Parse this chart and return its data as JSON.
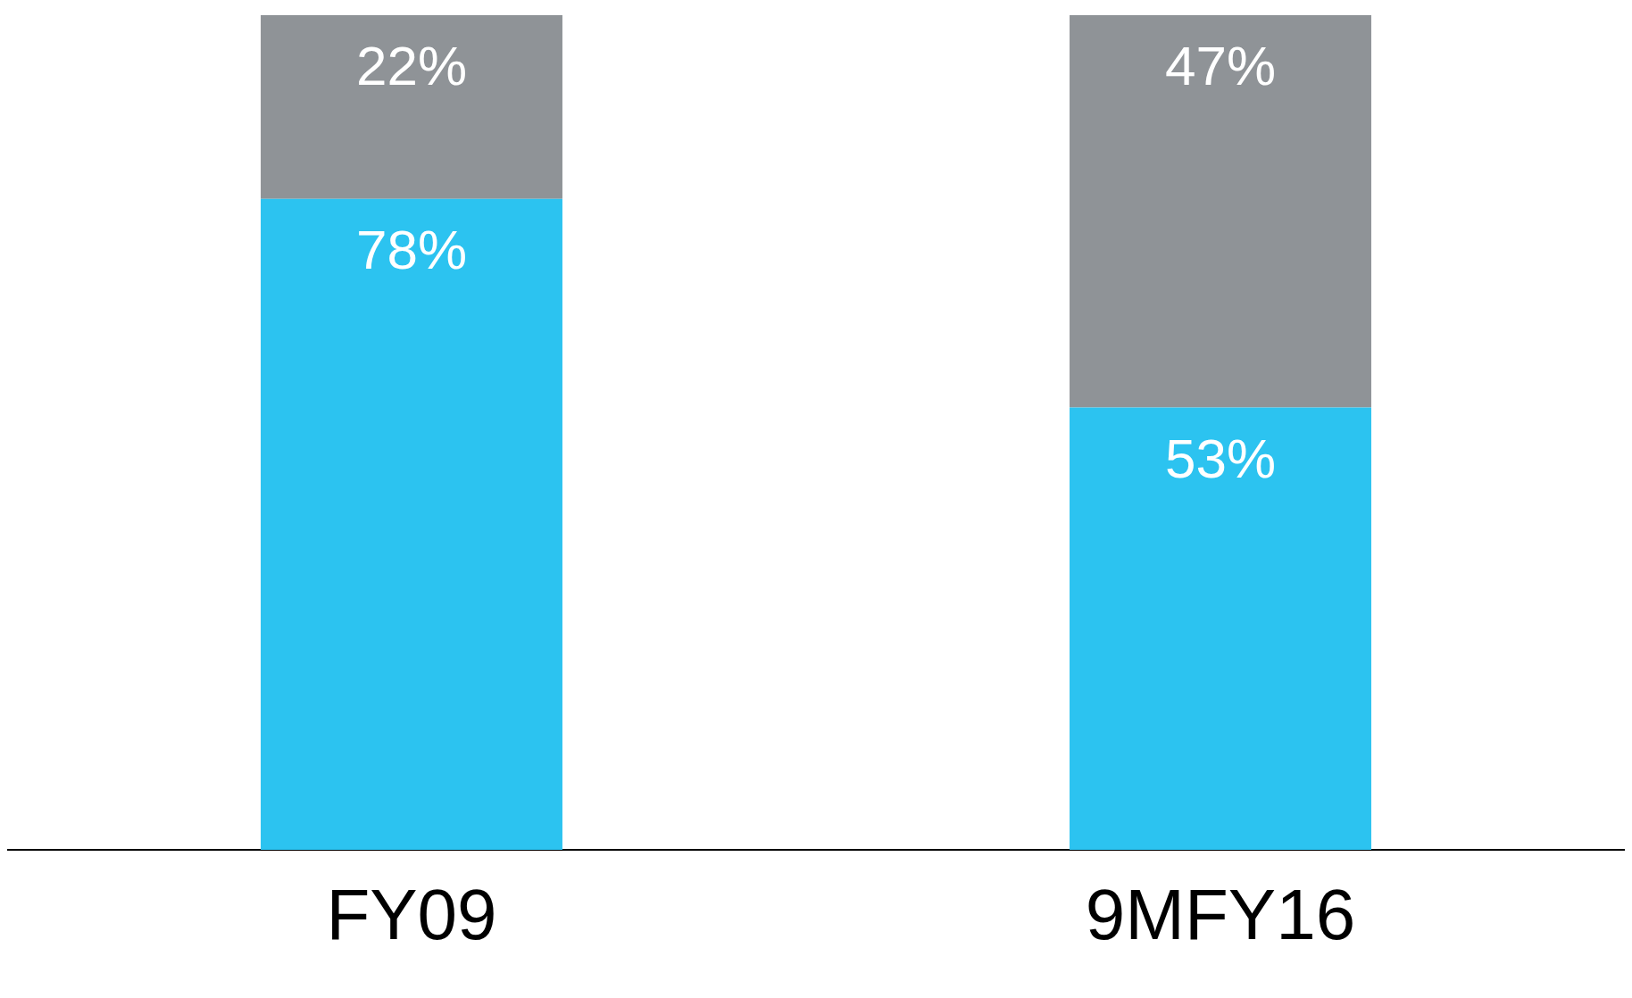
{
  "chart_data": {
    "type": "bar",
    "stacked": true,
    "categories": [
      "FY09",
      "9MFY16"
    ],
    "series": [
      {
        "color": "#2cc3f0",
        "values": [
          78,
          53
        ],
        "value_labels": [
          "78%",
          "53%"
        ]
      },
      {
        "color": "#8f9397",
        "values": [
          22,
          47
        ],
        "value_labels": [
          "22%",
          "47%"
        ]
      }
    ],
    "ylim": [
      0,
      100
    ],
    "grid": false,
    "legend": false
  }
}
